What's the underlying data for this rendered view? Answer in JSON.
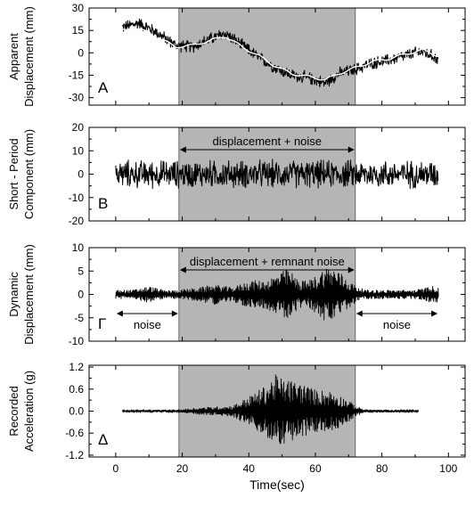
{
  "chart_data": [
    {
      "type": "line",
      "panel_label": "A",
      "ylabel": [
        "Apparent",
        "Displacement (mm)"
      ],
      "ylim": [
        -35,
        30
      ],
      "yticks": [
        -30,
        -15,
        0,
        15,
        30
      ],
      "xlim": [
        -8,
        105
      ],
      "signal_range_sec": [
        2,
        97
      ],
      "shaded_range_sec": [
        19,
        72
      ],
      "series": [
        {
          "kind": "noisy-record",
          "color": "#000000",
          "noise_amplitude": 5,
          "x": [
            2,
            7,
            12,
            18,
            23,
            28,
            33,
            38,
            43,
            48,
            53,
            58,
            63,
            67,
            72,
            77,
            82,
            87,
            92,
            97
          ],
          "y": [
            17,
            20,
            14,
            5,
            4,
            9,
            13,
            5,
            -3,
            -10,
            -15,
            -17,
            -20,
            -14,
            -11,
            -7,
            -5,
            -2,
            1,
            -4
          ]
        },
        {
          "kind": "smoothed-trend",
          "color": "#ffffff",
          "x": [
            2,
            7,
            12,
            18,
            23,
            28,
            33,
            38,
            43,
            48,
            53,
            58,
            63,
            67,
            72,
            77,
            82,
            87,
            92,
            97
          ],
          "y": [
            15,
            16,
            11,
            4,
            5,
            8,
            11,
            4,
            -2,
            -9,
            -14,
            -16,
            -18,
            -14,
            -10,
            -6,
            -4,
            -1,
            2,
            -2
          ]
        }
      ]
    },
    {
      "type": "line",
      "panel_label": "B",
      "ylabel": [
        "Short - Period",
        "Component (mm)"
      ],
      "ylim": [
        -20,
        20
      ],
      "yticks": [
        -20,
        -10,
        0,
        10,
        20
      ],
      "xlim": [
        -8,
        105
      ],
      "signal_range_sec": [
        0,
        97
      ],
      "shaded_range_sec": [
        19,
        72
      ],
      "annotation": "displacement + noise",
      "series": [
        {
          "kind": "noisy-record",
          "color": "#000000",
          "noise_amplitude": 7,
          "x": [
            0,
            97
          ],
          "y": [
            0,
            0
          ]
        }
      ]
    },
    {
      "type": "line",
      "panel_label": "Γ",
      "ylabel": [
        "Dynamic",
        "Displacement (mm)"
      ],
      "ylim": [
        -10,
        10
      ],
      "yticks": [
        -10,
        -5,
        0,
        5,
        10
      ],
      "xlim": [
        -8,
        105
      ],
      "signal_range_sec": [
        0,
        97
      ],
      "shaded_range_sec": [
        19,
        72
      ],
      "annotation": "displacement + remnant noise",
      "noise_labels": [
        "noise",
        "noise"
      ],
      "series": [
        {
          "kind": "envelope",
          "color": "#000000",
          "x": [
            0,
            5,
            10,
            15,
            19,
            25,
            30,
            35,
            40,
            45,
            50,
            52,
            55,
            58,
            60,
            63,
            65,
            68,
            70,
            72,
            75,
            80,
            85,
            90,
            95,
            97
          ],
          "y": [
            1,
            1,
            1.8,
            0.9,
            1,
            1.5,
            2.2,
            1.5,
            3,
            3,
            5,
            5.5,
            3,
            3,
            4,
            6,
            6,
            4.5,
            3,
            2,
            1,
            1,
            1,
            1,
            1.8,
            1.8
          ]
        }
      ]
    },
    {
      "type": "line",
      "panel_label": "Δ",
      "ylabel": [
        "Recorded",
        "Acceleration (g)"
      ],
      "ylim": [
        -1.25,
        1.25
      ],
      "yticks": [
        -1.2,
        -0.6,
        0.0,
        0.6,
        1.2
      ],
      "xlim": [
        -8,
        105
      ],
      "signal_range_sec": [
        2,
        91
      ],
      "shaded_range_sec": [
        19,
        72
      ],
      "xlabel": "Time(sec)",
      "xticks": [
        0,
        20,
        40,
        60,
        80,
        100
      ],
      "series": [
        {
          "kind": "envelope",
          "color": "#000000",
          "x": [
            2,
            10,
            19,
            25,
            35,
            40,
            45,
            48,
            50,
            55,
            60,
            65,
            68,
            70,
            72,
            75,
            85,
            91
          ],
          "y": [
            0.02,
            0.03,
            0.05,
            0.1,
            0.15,
            0.4,
            0.7,
            1.0,
            0.9,
            0.8,
            0.6,
            0.55,
            0.4,
            0.3,
            0.15,
            0.05,
            0.03,
            0.02
          ]
        }
      ]
    }
  ]
}
